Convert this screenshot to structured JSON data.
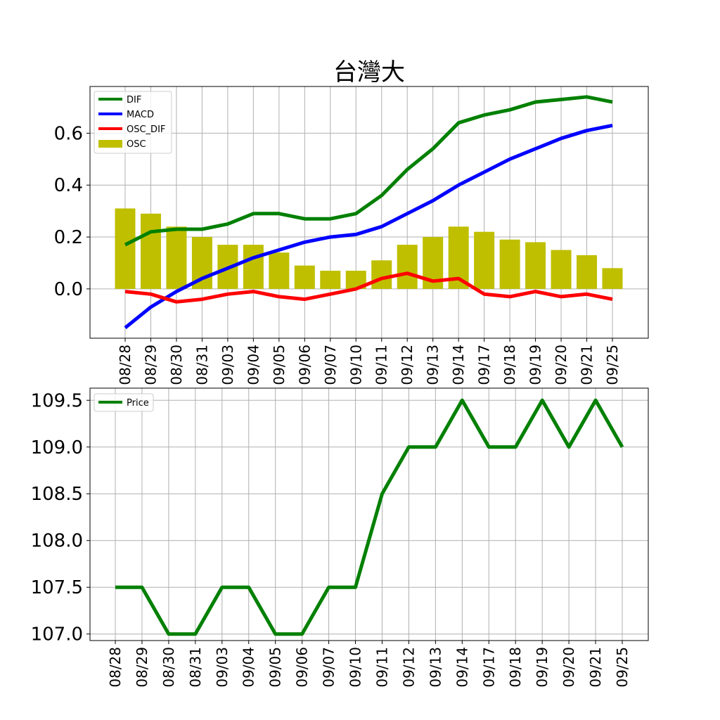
{
  "chart_data": [
    {
      "type": "bar",
      "title": "台灣大",
      "xlabel": "",
      "ylabel": "",
      "categories": [
        "08/28",
        "08/29",
        "08/30",
        "08/31",
        "09/03",
        "09/04",
        "09/05",
        "09/06",
        "09/07",
        "09/10",
        "09/11",
        "09/12",
        "09/13",
        "09/14",
        "09/17",
        "09/18",
        "09/19",
        "09/20",
        "09/21",
        "09/25"
      ],
      "ylim": [
        -0.19,
        0.78
      ],
      "yticks": [
        0.0,
        0.2,
        0.4,
        0.6
      ],
      "ytick_labels": [
        "0.0",
        "0.2",
        "0.4",
        "0.6"
      ],
      "grid": true,
      "legend_position": "top-left",
      "series": [
        {
          "name": "DIF",
          "kind": "line",
          "color": "#008000",
          "values": [
            0.17,
            0.22,
            0.23,
            0.23,
            0.25,
            0.29,
            0.29,
            0.27,
            0.27,
            0.29,
            0.36,
            0.46,
            0.54,
            0.64,
            0.67,
            0.69,
            0.72,
            0.73,
            0.74,
            0.72
          ]
        },
        {
          "name": "MACD",
          "kind": "line",
          "color": "#0000ff",
          "values": [
            -0.15,
            -0.07,
            -0.01,
            0.04,
            0.08,
            0.12,
            0.15,
            0.18,
            0.2,
            0.21,
            0.24,
            0.29,
            0.34,
            0.4,
            0.45,
            0.5,
            0.54,
            0.58,
            0.61,
            0.63
          ]
        },
        {
          "name": "OSC_DIF",
          "kind": "line",
          "color": "#ff0000",
          "values": [
            -0.01,
            -0.02,
            -0.05,
            -0.04,
            -0.02,
            -0.01,
            -0.03,
            -0.04,
            -0.02,
            0.0,
            0.04,
            0.06,
            0.03,
            0.04,
            -0.02,
            -0.03,
            -0.01,
            -0.03,
            -0.02,
            -0.04
          ]
        },
        {
          "name": "OSC",
          "kind": "bar",
          "color": "#bfbf00",
          "values": [
            0.31,
            0.29,
            0.24,
            0.2,
            0.17,
            0.17,
            0.14,
            0.09,
            0.07,
            0.07,
            0.11,
            0.17,
            0.2,
            0.24,
            0.22,
            0.19,
            0.18,
            0.15,
            0.13,
            0.08
          ]
        }
      ]
    },
    {
      "type": "line",
      "title": "",
      "xlabel": "",
      "ylabel": "",
      "categories": [
        "08/28",
        "08/29",
        "08/30",
        "08/31",
        "09/03",
        "09/04",
        "09/05",
        "09/06",
        "09/07",
        "09/10",
        "09/11",
        "09/12",
        "09/13",
        "09/14",
        "09/17",
        "09/18",
        "09/19",
        "09/20",
        "09/21",
        "09/25"
      ],
      "ylim": [
        106.93,
        109.63
      ],
      "yticks": [
        107.0,
        107.5,
        108.0,
        108.5,
        109.0,
        109.5
      ],
      "ytick_labels": [
        "107.0",
        "107.5",
        "108.0",
        "108.5",
        "109.0",
        "109.5"
      ],
      "grid": true,
      "legend_position": "top-left",
      "series": [
        {
          "name": "Price",
          "kind": "line",
          "color": "#008000",
          "values": [
            107.5,
            107.5,
            107.0,
            107.0,
            107.5,
            107.5,
            107.0,
            107.0,
            107.5,
            107.5,
            108.5,
            109.0,
            109.0,
            109.5,
            109.0,
            109.0,
            109.5,
            109.0,
            109.5,
            109.0
          ]
        }
      ]
    }
  ]
}
